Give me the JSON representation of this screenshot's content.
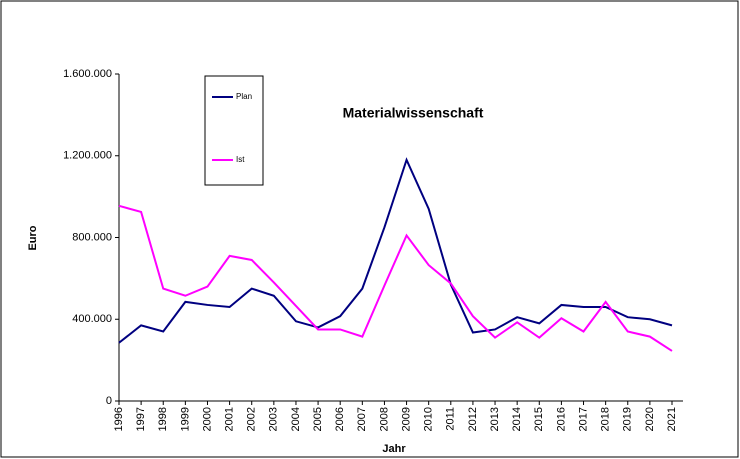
{
  "chart_data": {
    "type": "line",
    "title": "Materialwissenschaft",
    "x_label": "Jahr",
    "y_label": "Euro",
    "categories": [
      "1996",
      "1997",
      "1998",
      "1999",
      "2000",
      "2001",
      "2002",
      "2003",
      "2004",
      "2005",
      "2006",
      "2007",
      "2008",
      "2009",
      "2010",
      "2011",
      "2012",
      "2013",
      "2014",
      "2015",
      "2016",
      "2017",
      "2018",
      "2019",
      "2020",
      "2021"
    ],
    "series": [
      {
        "name": "Plan",
        "color": "#000080",
        "values": [
          285000,
          370000,
          340000,
          485000,
          470000,
          460000,
          550000,
          515000,
          390000,
          360000,
          415000,
          550000,
          850000,
          1180000,
          940000,
          570000,
          335000,
          350000,
          410000,
          380000,
          470000,
          460000,
          460000,
          410000,
          400000,
          370000
        ]
      },
      {
        "name": "Ist",
        "color": "#ff00ff",
        "values": [
          955000,
          925000,
          550000,
          515000,
          560000,
          710000,
          690000,
          580000,
          465000,
          350000,
          350000,
          315000,
          565000,
          810000,
          665000,
          575000,
          415000,
          310000,
          385000,
          310000,
          405000,
          340000,
          485000,
          340000,
          315000,
          245000
        ]
      }
    ],
    "ylim": [
      0,
      1600000
    ],
    "yticks": [
      0,
      {
        "value": 400000,
        "label": "400.000"
      },
      {
        "value": 800000,
        "label": "800.000"
      },
      {
        "value": 1200000,
        "label": "1.200.000"
      },
      {
        "value": 1600000,
        "label": "1.600.000"
      }
    ]
  }
}
